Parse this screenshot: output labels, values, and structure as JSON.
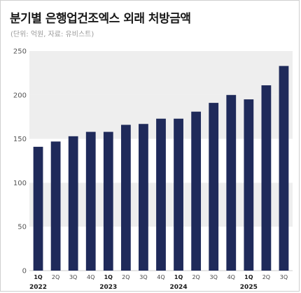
{
  "title": "분기별 은행업건조엑스 외래 처방금액",
  "subtitle": "(단위: 억원, 자료: 유비스트)",
  "chart_data": {
    "type": "bar",
    "categories": [
      "1Q",
      "2Q",
      "3Q",
      "4Q",
      "1Q",
      "2Q",
      "3Q",
      "4Q",
      "1Q",
      "2Q",
      "3Q",
      "4Q",
      "1Q",
      "2Q",
      "3Q"
    ],
    "years": [
      {
        "label": "2022",
        "index": 0
      },
      {
        "label": "2023",
        "index": 4
      },
      {
        "label": "2024",
        "index": 8
      },
      {
        "label": "2025",
        "index": 12
      }
    ],
    "values": [
      141,
      147,
      153,
      158,
      158,
      166,
      167,
      173,
      173,
      181,
      191,
      200,
      195,
      211,
      233
    ],
    "ylim": [
      0,
      250
    ],
    "yticks": [
      0,
      50,
      100,
      150,
      200,
      250
    ],
    "bar_color": "#1f2a5a",
    "band_color": "#eeeeee",
    "xlabel": "",
    "ylabel": ""
  }
}
